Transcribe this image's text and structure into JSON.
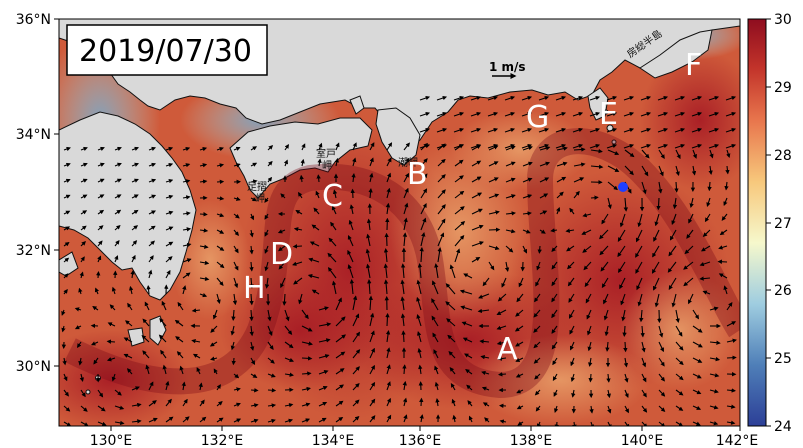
{
  "date": "2019/07/30",
  "scale_arrow_label": "1 m/s",
  "axes": {
    "lon_ticks": [
      "130°E",
      "132°E",
      "134°E",
      "136°E",
      "138°E",
      "140°E",
      "142°E"
    ],
    "lat_ticks": [
      "36°N",
      "34°N",
      "32°N",
      "30°N"
    ]
  },
  "colorbar": {
    "ticks": [
      "30",
      "29",
      "28",
      "27",
      "26",
      "25",
      "24"
    ],
    "min": 24,
    "max": 30,
    "colors": [
      "#2c3f97",
      "#4f7fb8",
      "#9fcde0",
      "#f6f8cc",
      "#f7c87c",
      "#e8764d",
      "#c2332a",
      "#8e0d1f"
    ]
  },
  "land_color": "#d9d9d9",
  "ocean_color": "#cf5a3a",
  "region_labels": [
    {
      "id": "A",
      "text": "A"
    },
    {
      "id": "B",
      "text": "B"
    },
    {
      "id": "C",
      "text": "C"
    },
    {
      "id": "D",
      "text": "D"
    },
    {
      "id": "E",
      "text": "E"
    },
    {
      "id": "F",
      "text": "F"
    },
    {
      "id": "G",
      "text": "G"
    },
    {
      "id": "H",
      "text": "H"
    }
  ],
  "place_labels": {
    "muroto": [
      "室戸",
      "岬"
    ],
    "ashizuri": [
      "足摺",
      "岬"
    ],
    "shiono": [
      "潮岬"
    ],
    "boso": [
      "房総半島"
    ]
  },
  "marker_color": "#1f3fff"
}
